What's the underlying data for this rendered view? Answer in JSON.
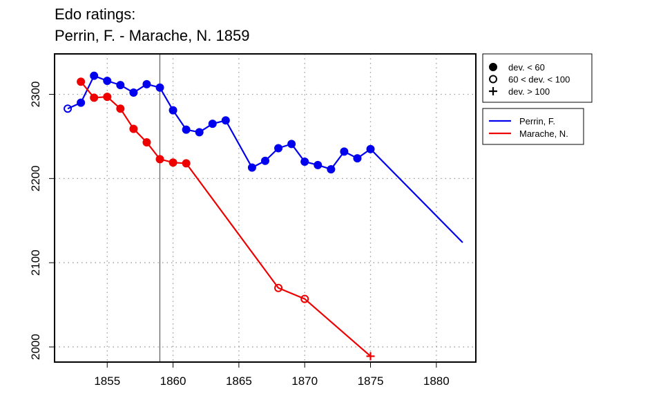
{
  "chart_data": {
    "type": "line",
    "title": "Edo ratings:",
    "subtitle": "Perrin, F. - Marache, N. 1859",
    "xlabel": "",
    "ylabel": "",
    "xlim": [
      1851,
      1883
    ],
    "ylim": [
      1982,
      2348
    ],
    "xticks": [
      1855,
      1860,
      1865,
      1870,
      1875,
      1880
    ],
    "yticks": [
      2000,
      2100,
      2200,
      2300
    ],
    "grid": true,
    "reference_line_x": 1859,
    "point_legend": [
      {
        "marker": "filled",
        "label": "dev. < 60"
      },
      {
        "marker": "open",
        "label": "60 < dev. < 100"
      },
      {
        "marker": "plus",
        "label": "dev. > 100"
      }
    ],
    "series": [
      {
        "name": "Perrin, F.",
        "color": "#0000ee",
        "points": [
          {
            "x": 1852,
            "y": 2283,
            "marker": "open"
          },
          {
            "x": 1853,
            "y": 2290,
            "marker": "filled"
          },
          {
            "x": 1854,
            "y": 2322,
            "marker": "filled"
          },
          {
            "x": 1855,
            "y": 2316,
            "marker": "filled"
          },
          {
            "x": 1856,
            "y": 2311,
            "marker": "filled"
          },
          {
            "x": 1857,
            "y": 2302,
            "marker": "filled"
          },
          {
            "x": 1858,
            "y": 2312,
            "marker": "filled"
          },
          {
            "x": 1859,
            "y": 2308,
            "marker": "filled"
          },
          {
            "x": 1860,
            "y": 2281,
            "marker": "filled"
          },
          {
            "x": 1861,
            "y": 2258,
            "marker": "filled"
          },
          {
            "x": 1862,
            "y": 2255,
            "marker": "filled"
          },
          {
            "x": 1863,
            "y": 2265,
            "marker": "filled"
          },
          {
            "x": 1864,
            "y": 2269,
            "marker": "filled"
          },
          {
            "x": 1866,
            "y": 2213,
            "marker": "filled"
          },
          {
            "x": 1867,
            "y": 2221,
            "marker": "filled"
          },
          {
            "x": 1868,
            "y": 2236,
            "marker": "filled"
          },
          {
            "x": 1869,
            "y": 2241,
            "marker": "filled"
          },
          {
            "x": 1870,
            "y": 2220,
            "marker": "filled"
          },
          {
            "x": 1871,
            "y": 2216,
            "marker": "filled"
          },
          {
            "x": 1872,
            "y": 2211,
            "marker": "filled"
          },
          {
            "x": 1873,
            "y": 2232,
            "marker": "filled"
          },
          {
            "x": 1874,
            "y": 2224,
            "marker": "filled"
          },
          {
            "x": 1875,
            "y": 2235,
            "marker": "filled"
          },
          {
            "x": 1882,
            "y": 2124,
            "marker": "none"
          }
        ]
      },
      {
        "name": "Marache, N.",
        "color": "#ee0000",
        "points": [
          {
            "x": 1853,
            "y": 2315,
            "marker": "filled"
          },
          {
            "x": 1854,
            "y": 2296,
            "marker": "filled"
          },
          {
            "x": 1855,
            "y": 2297,
            "marker": "filled"
          },
          {
            "x": 1856,
            "y": 2283,
            "marker": "filled"
          },
          {
            "x": 1857,
            "y": 2259,
            "marker": "filled"
          },
          {
            "x": 1858,
            "y": 2243,
            "marker": "filled"
          },
          {
            "x": 1859,
            "y": 2223,
            "marker": "filled"
          },
          {
            "x": 1860,
            "y": 2219,
            "marker": "filled"
          },
          {
            "x": 1861,
            "y": 2218,
            "marker": "filled"
          },
          {
            "x": 1868,
            "y": 2070,
            "marker": "open"
          },
          {
            "x": 1870,
            "y": 2057,
            "marker": "open"
          },
          {
            "x": 1875,
            "y": 1989,
            "marker": "plus"
          }
        ]
      }
    ]
  }
}
